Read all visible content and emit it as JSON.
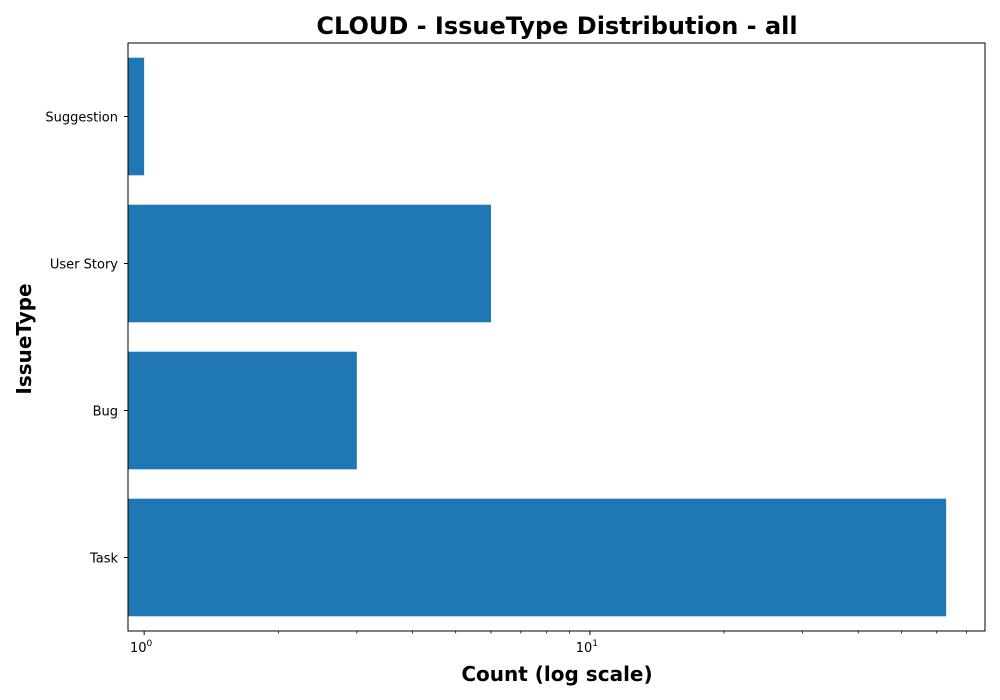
{
  "chart_data": {
    "type": "bar",
    "orientation": "horizontal",
    "title": "CLOUD - IssueType Distribution - all",
    "xlabel": "Count (log scale)",
    "ylabel": "IssueType",
    "x_scale": "log",
    "xlim": [
      0.92,
      77
    ],
    "categories": [
      "Task",
      "Bug",
      "User Story",
      "Suggestion"
    ],
    "values": [
      63,
      3,
      6,
      1
    ],
    "x_ticks": [
      {
        "value": 1,
        "base": "10",
        "exp": "0"
      },
      {
        "value": 10,
        "base": "10",
        "exp": "1"
      }
    ],
    "bar_color": "#1f77b4",
    "grid": false,
    "legend": "none"
  }
}
